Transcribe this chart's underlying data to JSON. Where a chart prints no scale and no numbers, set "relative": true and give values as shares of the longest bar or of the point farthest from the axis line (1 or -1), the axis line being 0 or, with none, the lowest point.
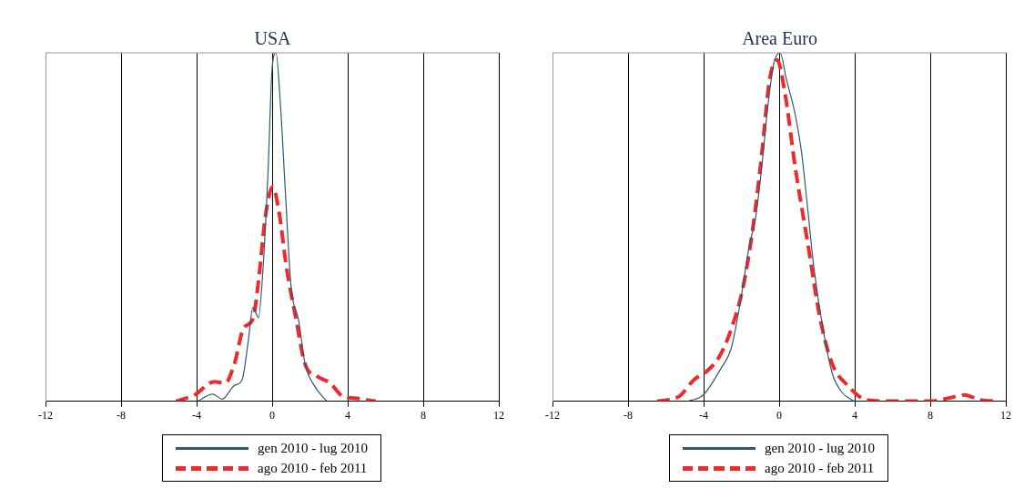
{
  "chart_data": [
    {
      "type": "line",
      "title": "USA",
      "relative": true,
      "xlim": [
        -12,
        12
      ],
      "xticks": [
        -12,
        -8,
        -4,
        0,
        4,
        8,
        12
      ],
      "grid": "x",
      "tick_labels": "x",
      "legend": "bottom",
      "series": [
        {
          "name": "gen 2010 - lug 2010",
          "color": "#2e5a78",
          "line_style": "solid",
          "x": [
            -3.95,
            -3.14,
            -2.65,
            -2.0,
            -1.59,
            -1.27,
            -1.02,
            -0.73,
            -0.46,
            -0.21,
            -0.02,
            0.2,
            0.44,
            0.68,
            1.0,
            1.41,
            1.74,
            2.23,
            2.88
          ],
          "values": [
            0,
            0.02,
            0.006,
            0.045,
            0.062,
            0.17,
            0.27,
            0.24,
            0.4,
            0.67,
            0.94,
            1.0,
            0.85,
            0.62,
            0.33,
            0.23,
            0.107,
            0.045,
            0
          ]
        },
        {
          "name": "ago 2010 - feb 2011",
          "color": "#ee2a2a",
          "line_style": "dashed",
          "x": [
            -5.09,
            -4.11,
            -3.06,
            -2.49,
            -2.0,
            -1.51,
            -1.02,
            -0.7,
            -0.37,
            0.03,
            0.36,
            0.76,
            1.25,
            1.74,
            2.39,
            3.04,
            3.77,
            4.34,
            5.48
          ],
          "values": [
            0,
            0.018,
            0.056,
            0.052,
            0.107,
            0.21,
            0.236,
            0.356,
            0.526,
            0.615,
            0.544,
            0.383,
            0.24,
            0.107,
            0.071,
            0.053,
            0.013,
            0.009,
            0
          ]
        }
      ]
    },
    {
      "type": "line",
      "title": "Area Euro",
      "relative": true,
      "xlim": [
        -12,
        12
      ],
      "xticks": [
        -12,
        -8,
        -4,
        0,
        4,
        8,
        12
      ],
      "grid": "x",
      "tick_labels": "x",
      "legend": "bottom",
      "series": [
        {
          "name": "gen 2010 - lug 2010",
          "color": "#2e5a78",
          "line_style": "solid",
          "x": [
            -4.83,
            -4.02,
            -3.04,
            -2.55,
            -2.07,
            -1.58,
            -1.25,
            -0.93,
            -0.6,
            -0.28,
            0.05,
            0.37,
            0.86,
            1.19,
            1.51,
            1.84,
            2.33,
            2.81,
            3.3,
            3.95
          ],
          "values": [
            0,
            0.018,
            0.098,
            0.15,
            0.28,
            0.446,
            0.526,
            0.668,
            0.847,
            0.97,
            1.0,
            0.927,
            0.82,
            0.713,
            0.553,
            0.383,
            0.205,
            0.08,
            0.027,
            0
          ]
        },
        {
          "name": "ago 2010 - feb 2011",
          "color": "#ee2a2a",
          "line_style": "dashed",
          "x": [
            -6.46,
            -5.32,
            -4.5,
            -3.85,
            -3.2,
            -2.55,
            -1.9,
            -1.41,
            -0.93,
            -0.52,
            -0.11,
            0.29,
            0.86,
            1.51,
            2.16,
            2.81,
            3.63,
            4.6,
            5.58,
            8.0,
            8.99,
            9.8,
            10.62,
            11.59
          ],
          "values": [
            0,
            0.013,
            0.062,
            0.085,
            0.125,
            0.205,
            0.33,
            0.49,
            0.704,
            0.918,
            0.98,
            0.89,
            0.668,
            0.455,
            0.24,
            0.107,
            0.045,
            0.004,
            0,
            0,
            0.009,
            0.018,
            0.004,
            0
          ]
        }
      ]
    }
  ]
}
